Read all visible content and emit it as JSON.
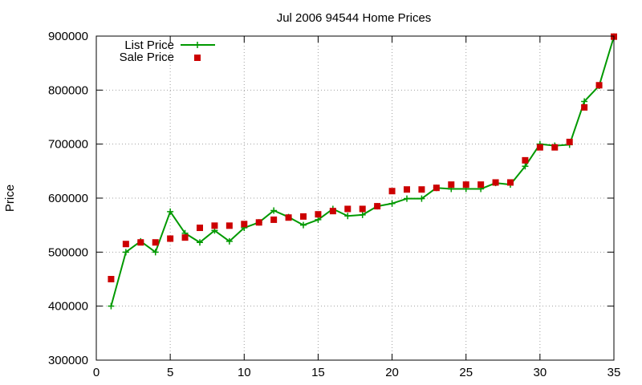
{
  "chart_data": {
    "type": "line",
    "title": "Jul 2006 94544 Home Prices",
    "xlabel": "",
    "ylabel": "Price",
    "xlim": [
      0,
      35
    ],
    "ylim": [
      300000,
      900000
    ],
    "xticks": [
      0,
      5,
      10,
      15,
      20,
      25,
      30,
      35
    ],
    "yticks": [
      300000,
      400000,
      500000,
      600000,
      700000,
      800000,
      900000
    ],
    "grid": true,
    "legend_position": "top-left",
    "series": [
      {
        "name": "List Price",
        "style": "line-with-plus-markers",
        "color": "#009900",
        "x": [
          1,
          2,
          3,
          4,
          5,
          6,
          7,
          8,
          9,
          10,
          11,
          12,
          13,
          14,
          15,
          16,
          17,
          18,
          19,
          20,
          21,
          22,
          23,
          24,
          25,
          26,
          27,
          28,
          29,
          30,
          31,
          32,
          33,
          34,
          35
        ],
        "values": [
          400000,
          500000,
          520000,
          500000,
          575000,
          535000,
          518000,
          540000,
          520000,
          545000,
          555000,
          577000,
          565000,
          550000,
          560000,
          580000,
          567000,
          569000,
          585000,
          590000,
          599000,
          599000,
          619000,
          617000,
          617000,
          617000,
          628000,
          625000,
          659000,
          700000,
          697000,
          699000,
          779000,
          808000,
          899000
        ]
      },
      {
        "name": "Sale Price",
        "style": "square-markers",
        "color": "#cc0000",
        "x": [
          1,
          2,
          3,
          4,
          5,
          6,
          7,
          8,
          9,
          10,
          11,
          12,
          13,
          14,
          15,
          16,
          17,
          18,
          19,
          20,
          21,
          22,
          23,
          24,
          25,
          26,
          27,
          28,
          29,
          30,
          31,
          32,
          33,
          34,
          35
        ],
        "values": [
          450000,
          515000,
          518000,
          518000,
          525000,
          527000,
          545000,
          549000,
          549000,
          552000,
          555000,
          560000,
          564000,
          566000,
          570000,
          576000,
          580000,
          580000,
          585000,
          613000,
          616000,
          616000,
          619000,
          625000,
          625000,
          625000,
          629000,
          629000,
          670000,
          694000,
          694000,
          704000,
          768000,
          809000,
          899000
        ]
      }
    ]
  }
}
